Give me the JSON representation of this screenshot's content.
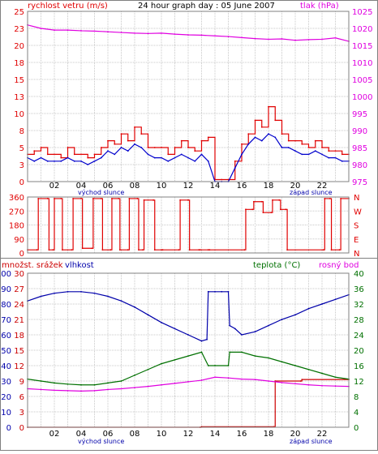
{
  "colors": {
    "background": "#ffffff",
    "frame": "#808080",
    "grid": "#c8c8c8",
    "wind": "#e00000",
    "wind_avg": "#0000cc",
    "pressure": "#e000e0",
    "direction": "#e00000",
    "humidity": "#0000aa",
    "temperature": "#007000",
    "dewpoint": "#e000e0",
    "rain": "#cc0000",
    "axis_text": "#000000",
    "sun_text": "#0000aa"
  },
  "chart_data": [
    {
      "type": "line",
      "name": "wind-pressure",
      "title": "24 hour graph day : 05 June 2007",
      "left_label": "rychlost vetru (m/s)",
      "right_label": "tlak (hPa)",
      "y_left": {
        "min": 0,
        "max": 25,
        "ticks": [
          "0",
          "3",
          "5",
          "8",
          "10",
          "13",
          "15",
          "18",
          "20",
          "23",
          "25"
        ]
      },
      "y_right": {
        "min": 975,
        "max": 1025,
        "ticks": [
          "975",
          "980",
          "985",
          "990",
          "995",
          "1000",
          "1005",
          "1010",
          "1015",
          "1020",
          "1025"
        ]
      },
      "x_ticks": [
        "02",
        "04",
        "06",
        "08",
        "10",
        "12",
        "14",
        "16",
        "18",
        "20",
        "22"
      ],
      "sunrise_label": "východ slunce",
      "sunset_label": "západ slunce",
      "series": [
        {
          "role": "wind_gust",
          "axis": "left",
          "x": [
            0,
            0.5,
            1,
            1.5,
            2,
            2.5,
            3,
            3.5,
            4,
            4.5,
            5,
            5.5,
            6,
            6.5,
            7,
            7.5,
            8,
            8.5,
            9,
            9.5,
            10,
            10.5,
            11,
            11.5,
            12,
            12.5,
            13,
            13.5,
            14,
            14.5,
            15,
            15.5,
            16,
            16.5,
            17,
            17.5,
            18,
            18.5,
            19,
            19.5,
            20,
            20.5,
            21,
            21.5,
            22,
            22.5,
            23,
            23.5,
            24
          ],
          "values": [
            4,
            4.5,
            5,
            4,
            4,
            3.5,
            5,
            4,
            4,
            3.5,
            4,
            5,
            6,
            5.5,
            7,
            6,
            8,
            7,
            5,
            5,
            5,
            4,
            5,
            6,
            5,
            4.5,
            6,
            6.5,
            0.3,
            0.3,
            0.3,
            3,
            5.5,
            7,
            9,
            8,
            11,
            9,
            7,
            6,
            6,
            5.5,
            5,
            6,
            5,
            4.5,
            4.5,
            4,
            4
          ]
        },
        {
          "role": "wind_avg",
          "axis": "left",
          "x": [
            0,
            0.5,
            1,
            1.5,
            2,
            2.5,
            3,
            3.5,
            4,
            4.5,
            5,
            5.5,
            6,
            6.5,
            7,
            7.5,
            8,
            8.5,
            9,
            9.5,
            10,
            10.5,
            11,
            11.5,
            12,
            12.5,
            13,
            13.5,
            14,
            14.5,
            15,
            15.5,
            16,
            16.5,
            17,
            17.5,
            18,
            18.5,
            19,
            19.5,
            20,
            20.5,
            21,
            21.5,
            22,
            22.5,
            23,
            23.5,
            24
          ],
          "values": [
            3.5,
            3,
            3.5,
            3,
            3,
            3,
            3.5,
            3,
            3,
            2.5,
            3,
            3.5,
            4.5,
            4,
            5,
            4.5,
            5.5,
            5,
            4,
            3.5,
            3.5,
            3,
            3.5,
            4,
            3.5,
            3,
            4,
            3,
            0,
            0,
            0,
            2,
            4,
            5.5,
            6.5,
            6,
            7,
            6.5,
            5,
            5,
            4.5,
            4,
            4,
            4.5,
            4,
            3.5,
            3.5,
            3,
            3
          ]
        },
        {
          "role": "pressure",
          "axis": "right",
          "x": [
            0,
            1,
            2,
            3,
            4,
            5,
            6,
            7,
            8,
            9,
            10,
            11,
            12,
            13,
            14,
            15,
            16,
            17,
            18,
            19,
            20,
            21,
            22,
            23,
            24
          ],
          "values": [
            1021,
            1020,
            1019.5,
            1019.5,
            1019.3,
            1019.2,
            1019,
            1018.8,
            1018.6,
            1018.5,
            1018.6,
            1018.3,
            1018.1,
            1018,
            1017.8,
            1017.6,
            1017.3,
            1017,
            1016.8,
            1016.9,
            1016.5,
            1016.7,
            1016.8,
            1017.2,
            1016.2
          ]
        }
      ]
    },
    {
      "type": "line",
      "name": "wind-direction",
      "y_left": {
        "min": 0,
        "max": 360,
        "ticks": [
          "0",
          "90",
          "180",
          "270",
          "360"
        ]
      },
      "y_right_ticks": [
        "N",
        "E",
        "S",
        "W",
        "N"
      ],
      "series": [
        {
          "role": "direction",
          "axis": "left",
          "x": [
            0,
            0.7,
            0.8,
            1.5,
            1.6,
            1.9,
            2,
            2.5,
            2.6,
            3.3,
            3.4,
            4,
            4.1,
            4.8,
            4.9,
            5.5,
            5.6,
            6.2,
            6.3,
            6.8,
            6.9,
            7.5,
            7.6,
            8.2,
            8.3,
            8.6,
            8.7,
            9.4,
            9.5,
            10,
            10.1,
            11.3,
            11.4,
            12,
            12.1,
            12.8,
            12.9,
            13.5,
            13.6,
            16.2,
            16.3,
            16.8,
            16.9,
            17.5,
            17.6,
            18.2,
            18.3,
            18.8,
            18.9,
            19.3,
            19.4,
            22.1,
            22.2,
            22.6,
            22.7,
            23.3,
            23.4,
            24
          ],
          "values": [
            20,
            20,
            350,
            350,
            20,
            20,
            350,
            350,
            20,
            20,
            350,
            350,
            30,
            30,
            350,
            350,
            20,
            20,
            350,
            350,
            20,
            20,
            350,
            350,
            20,
            20,
            340,
            340,
            20,
            20,
            20,
            20,
            340,
            340,
            20,
            20,
            20,
            20,
            20,
            20,
            280,
            280,
            330,
            330,
            260,
            260,
            340,
            340,
            280,
            280,
            20,
            20,
            350,
            350,
            20,
            20,
            350,
            350
          ]
        }
      ]
    },
    {
      "type": "line",
      "name": "humidity-temperature-rain",
      "left_label": "množst. srážek",
      "left_label2": "vlhkost",
      "right_label": "teplota (°C)",
      "right_label2": "rosný bod",
      "y_left": {
        "min": 0,
        "max": 100,
        "ticks": [
          "0",
          "10",
          "20",
          "30",
          "40",
          "50",
          "60",
          "70",
          "80",
          "90",
          "100"
        ]
      },
      "y_left2": {
        "ticks": [
          "0",
          "3",
          "6",
          "9",
          "12",
          "15",
          "18",
          "21",
          "24",
          "27",
          "30"
        ]
      },
      "y_right": {
        "min": 0,
        "max": 40,
        "ticks": [
          "0",
          "4",
          "8",
          "12",
          "16",
          "20",
          "24",
          "28",
          "32",
          "36",
          "40"
        ]
      },
      "x_ticks": [
        "02",
        "04",
        "06",
        "08",
        "10",
        "12",
        "14",
        "16",
        "18",
        "20",
        "22"
      ],
      "sunrise_label": "východ slunce",
      "sunset_label": "západ slunce",
      "series": [
        {
          "role": "humidity",
          "axis": "left",
          "x": [
            0,
            1,
            2,
            3,
            4,
            5,
            6,
            7,
            8,
            9,
            10,
            11,
            12,
            13,
            13.4,
            13.5,
            14,
            14.5,
            15,
            15.1,
            15.5,
            16,
            17,
            18,
            19,
            20,
            21,
            22,
            23,
            24
          ],
          "values": [
            82,
            85,
            87,
            88,
            88,
            87,
            85,
            82,
            78,
            73,
            68,
            64,
            60,
            56,
            57,
            88,
            88,
            88,
            88,
            66,
            64,
            60,
            62,
            66,
            70,
            73,
            77,
            80,
            83,
            86
          ]
        },
        {
          "role": "temperature",
          "axis": "right",
          "x": [
            0,
            1,
            2,
            3,
            4,
            5,
            6,
            7,
            8,
            9,
            10,
            11,
            12,
            13,
            13.5,
            14,
            15,
            15.1,
            16,
            17,
            18,
            19,
            20,
            21,
            22,
            23,
            24
          ],
          "values": [
            12.5,
            12,
            11.5,
            11.2,
            11,
            11,
            11.5,
            12,
            13.5,
            15,
            16.5,
            17.5,
            18.5,
            19.5,
            16,
            16,
            16,
            19.5,
            19.5,
            18.5,
            18,
            17,
            16,
            15,
            14,
            13,
            12.5
          ]
        },
        {
          "role": "dewpoint",
          "axis": "right",
          "x": [
            0,
            1,
            2,
            3,
            4,
            5,
            6,
            7,
            8,
            9,
            10,
            11,
            12,
            13,
            14,
            15,
            16,
            17,
            18,
            19,
            20,
            21,
            22,
            23,
            24
          ],
          "values": [
            10,
            9.8,
            9.6,
            9.5,
            9.4,
            9.5,
            9.8,
            10,
            10.3,
            10.6,
            11,
            11.4,
            11.8,
            12.2,
            13,
            12.8,
            12.5,
            12.4,
            12,
            11.6,
            11.3,
            11,
            10.8,
            10.7,
            10.6
          ]
        },
        {
          "role": "rain",
          "axis": "left2",
          "x": [
            0,
            12.9,
            13,
            18.4,
            18.5,
            20.4,
            20.5,
            24
          ],
          "values": [
            0,
            0,
            0.1,
            0.1,
            9,
            9,
            9.3,
            9.3
          ]
        }
      ]
    }
  ]
}
